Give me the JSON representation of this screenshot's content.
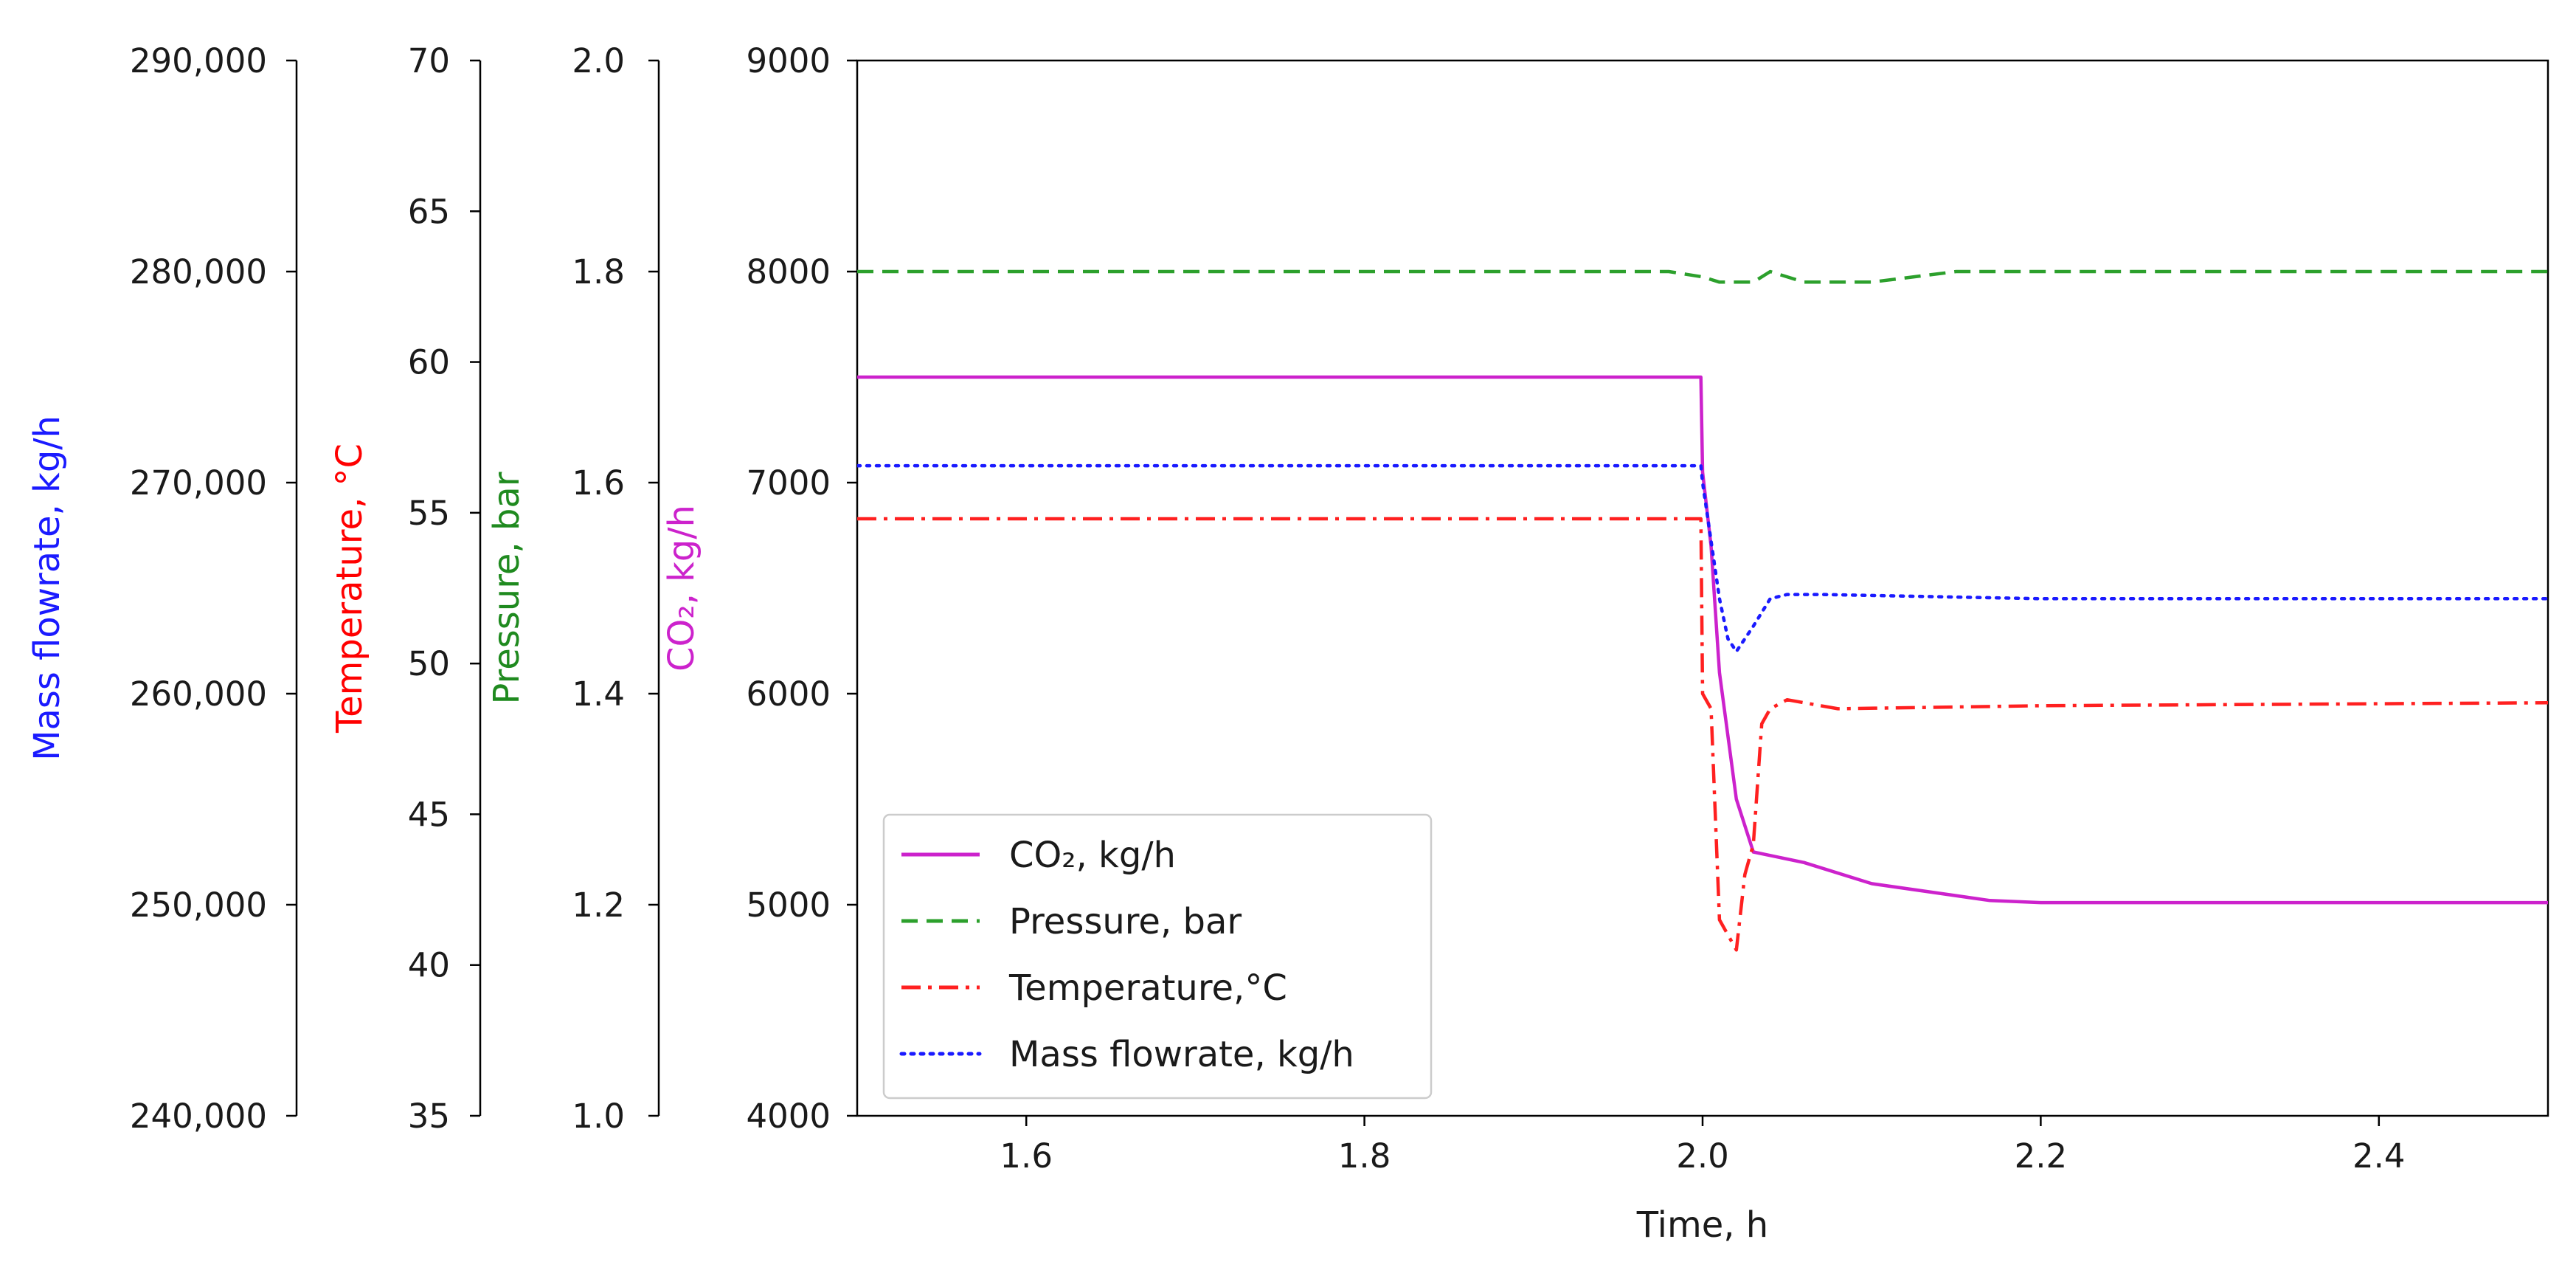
{
  "chart_data": {
    "type": "line",
    "xlabel": "Time, h",
    "xlim": [
      1.5,
      2.5
    ],
    "x_ticks": [
      1.6,
      1.8,
      2.0,
      2.2,
      2.4
    ],
    "x_tick_labels": [
      "1.6",
      "1.8",
      "2.0",
      "2.2",
      "2.4"
    ],
    "axes": [
      {
        "id": "co2",
        "label": "CO₂, kg/h",
        "color": "#cc22cc",
        "range": [
          4000,
          9000
        ],
        "ticks": [
          4000,
          5000,
          6000,
          7000,
          8000,
          9000
        ],
        "tick_labels": [
          "4000",
          "5000",
          "6000",
          "7000",
          "8000",
          "9000"
        ]
      },
      {
        "id": "pressure",
        "label": "Pressure, bar",
        "color": "#1f8a1f",
        "range": [
          1.0,
          2.0
        ],
        "ticks": [
          1.0,
          1.2,
          1.4,
          1.6,
          1.8,
          2.0
        ],
        "tick_labels": [
          "1.0",
          "1.2",
          "1.4",
          "1.6",
          "1.8",
          "2.0"
        ]
      },
      {
        "id": "temperature",
        "label": "Temperature, °C",
        "color": "#ff0000",
        "range": [
          35,
          70
        ],
        "ticks": [
          35,
          40,
          45,
          50,
          55,
          60,
          65,
          70
        ],
        "tick_labels": [
          "35",
          "40",
          "45",
          "50",
          "55",
          "60",
          "65",
          "70"
        ]
      },
      {
        "id": "massflow",
        "label": "Mass flowrate, kg/h",
        "color": "#1a1aff",
        "range": [
          240000,
          290000
        ],
        "ticks": [
          240000,
          250000,
          260000,
          270000,
          280000,
          290000
        ],
        "tick_labels": [
          "240,000",
          "250,000",
          "260,000",
          "270,000",
          "280,000",
          "290,000"
        ]
      }
    ],
    "series": [
      {
        "name": "CO₂, kg/h",
        "axis": "co2",
        "color": "#cc22cc",
        "style": "solid",
        "x": [
          1.5,
          1.8,
          1.999,
          2.0,
          2.005,
          2.01,
          2.02,
          2.03,
          2.06,
          2.1,
          2.17,
          2.2,
          2.3,
          2.4,
          2.5
        ],
        "y": [
          7500,
          7500,
          7500,
          7050,
          6700,
          6100,
          5500,
          5250,
          5200,
          5100,
          5020,
          5010,
          5010,
          5010,
          5010
        ]
      },
      {
        "name": "Pressure, bar",
        "axis": "pressure",
        "color": "#2ca02c",
        "style": "dashed",
        "x": [
          1.5,
          1.9,
          1.98,
          2.0,
          2.01,
          2.03,
          2.04,
          2.06,
          2.1,
          2.15,
          2.2,
          2.3,
          2.5
        ],
        "y": [
          1.8,
          1.8,
          1.8,
          1.795,
          1.79,
          1.79,
          1.8,
          1.79,
          1.79,
          1.8,
          1.8,
          1.8,
          1.8
        ]
      },
      {
        "name": "Temperature,°C",
        "axis": "temperature",
        "color": "#ff2020",
        "style": "dashdot",
        "x": [
          1.5,
          1.999,
          2.0,
          2.005,
          2.01,
          2.02,
          2.025,
          2.03,
          2.035,
          2.04,
          2.05,
          2.08,
          2.2,
          2.5
        ],
        "y": [
          54.8,
          54.8,
          49,
          48.5,
          41.5,
          40.5,
          43,
          44,
          48,
          48.5,
          48.8,
          48.5,
          48.6,
          48.7
        ]
      },
      {
        "name": "Mass flowrate, kg/h",
        "axis": "massflow",
        "color": "#1a1aff",
        "style": "dotted",
        "x": [
          1.5,
          1.999,
          2.0,
          2.01,
          2.015,
          2.02,
          2.03,
          2.04,
          2.05,
          2.07,
          2.2,
          2.5
        ],
        "y": [
          270800,
          270800,
          270000,
          264500,
          262600,
          262000,
          263200,
          264500,
          264700,
          264700,
          264500,
          264500
        ]
      }
    ],
    "legend": {
      "position": "lower-left",
      "entries": [
        {
          "label": "CO₂, kg/h",
          "color": "#cc22cc",
          "style": "solid"
        },
        {
          "label": "Pressure, bar",
          "color": "#2ca02c",
          "style": "dashed"
        },
        {
          "label": "Temperature,°C",
          "color": "#ff2020",
          "style": "dashdot"
        },
        {
          "label": "Mass flowrate, kg/h",
          "color": "#1a1aff",
          "style": "dotted"
        }
      ]
    }
  }
}
